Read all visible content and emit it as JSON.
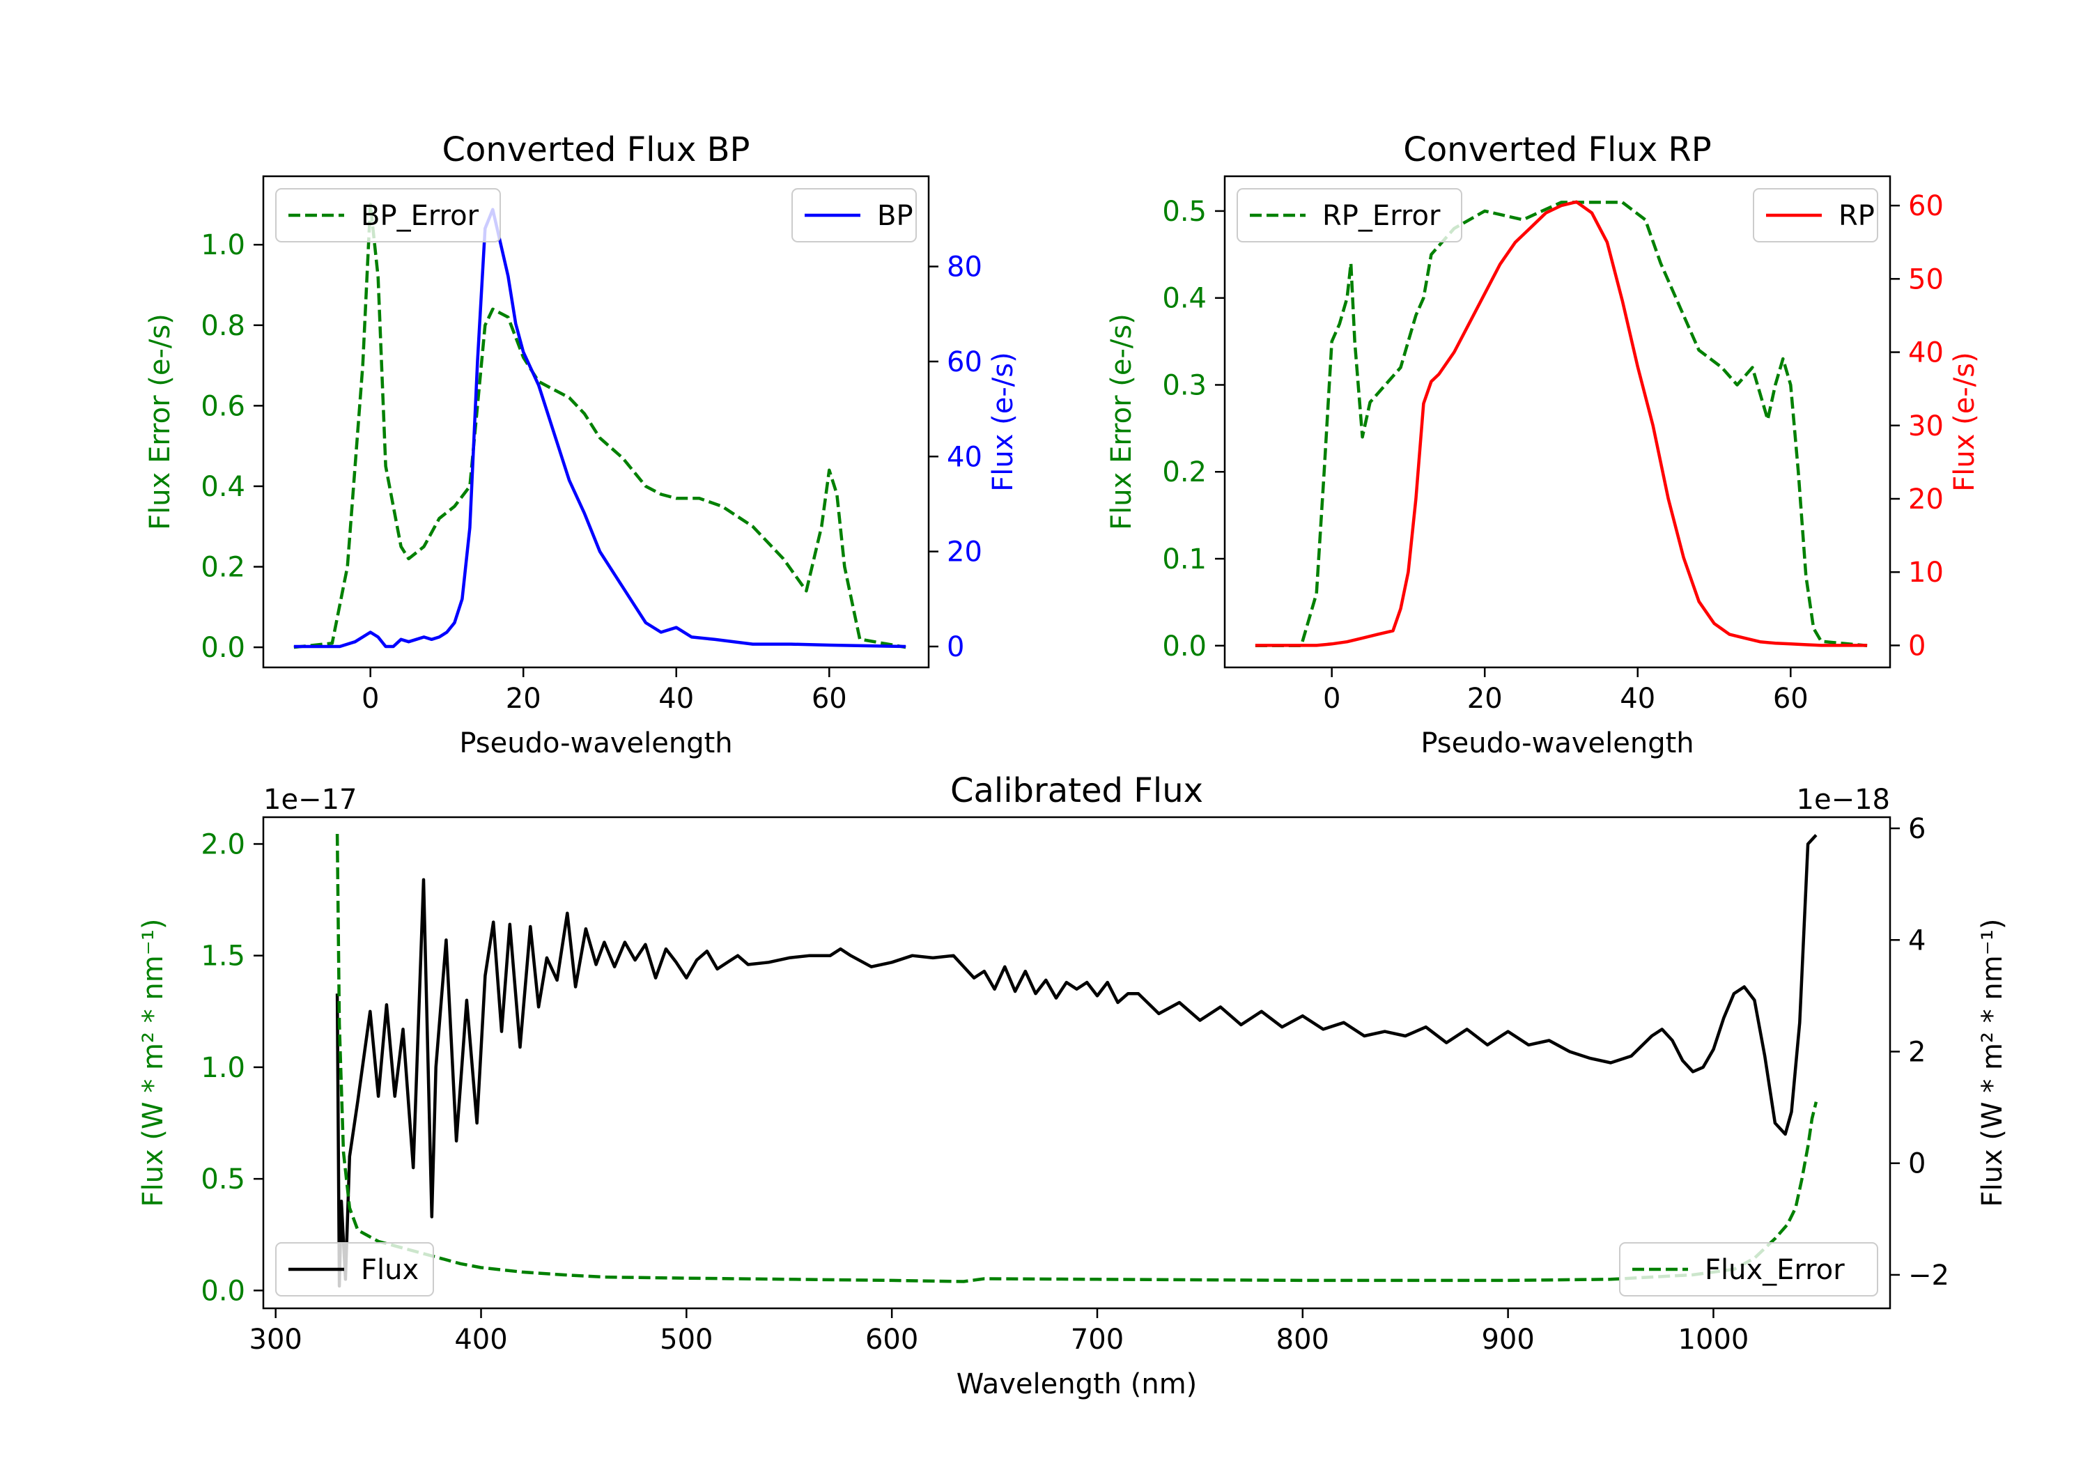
{
  "figure": {
    "background": "#ffffff"
  },
  "chart_data": [
    {
      "id": "bp",
      "type": "line",
      "title": "Converted Flux BP",
      "xlabel": "Pseudo-wavelength",
      "ylabel_left": "Flux Error (e-/s)",
      "ylabel_right": "Flux (e-/s)",
      "xlim": [
        -14,
        73
      ],
      "ylim_left": [
        -0.05,
        1.17
      ],
      "ylim_right": [
        -4.4,
        99
      ],
      "xticks": [
        0,
        20,
        40,
        60
      ],
      "yticks_left": [
        "0.0",
        "0.2",
        "0.4",
        "0.6",
        "0.8",
        "1.0"
      ],
      "yticks_left_values": [
        0,
        0.2,
        0.4,
        0.6,
        0.8,
        1.0
      ],
      "yticks_right": [
        "0",
        "20",
        "40",
        "60",
        "80"
      ],
      "yticks_right_values": [
        0,
        20,
        40,
        60,
        80
      ],
      "left_color": "#008000",
      "right_color": "#0000ff",
      "legend_left": {
        "label": "BP_Error",
        "position": "upper left"
      },
      "legend_right": {
        "label": "BP",
        "position": "upper right"
      },
      "series": [
        {
          "name": "BP_Error",
          "axis": "left",
          "color": "#008000",
          "style": "dashed",
          "x": [
            -10,
            -5,
            -3,
            -1,
            0,
            1,
            2,
            3,
            4,
            5,
            7,
            9,
            11,
            13,
            14,
            15,
            16,
            18,
            20,
            22,
            24,
            26,
            28,
            30,
            33,
            36,
            38,
            40,
            43,
            46,
            50,
            54,
            57,
            59,
            60,
            61,
            62,
            64,
            70
          ],
          "y": [
            0,
            0.01,
            0.2,
            0.7,
            1.1,
            0.92,
            0.45,
            0.35,
            0.25,
            0.22,
            0.25,
            0.32,
            0.35,
            0.4,
            0.6,
            0.8,
            0.84,
            0.82,
            0.72,
            0.66,
            0.64,
            0.62,
            0.58,
            0.52,
            0.47,
            0.4,
            0.38,
            0.37,
            0.37,
            0.35,
            0.3,
            0.22,
            0.14,
            0.3,
            0.44,
            0.38,
            0.2,
            0.02,
            0
          ]
        },
        {
          "name": "BP",
          "axis": "right",
          "color": "#0000ff",
          "style": "solid",
          "x": [
            -10,
            -4,
            -2,
            0,
            1,
            2,
            3,
            4,
            5,
            6,
            7,
            8,
            9,
            10,
            11,
            12,
            13,
            14,
            15,
            16,
            17,
            18,
            19,
            20,
            22,
            24,
            26,
            28,
            30,
            32,
            34,
            36,
            38,
            40,
            42,
            45,
            50,
            55,
            60,
            70
          ],
          "y": [
            0,
            0,
            1,
            3,
            2,
            0,
            0,
            1.5,
            1,
            1.5,
            2,
            1.5,
            2,
            3,
            5,
            10,
            25,
            60,
            88,
            92,
            85,
            78,
            68,
            62,
            55,
            45,
            35,
            28,
            20,
            15,
            10,
            5,
            3,
            4,
            2,
            1.5,
            0.5,
            0.5,
            0.3,
            0
          ]
        }
      ]
    },
    {
      "id": "rp",
      "type": "line",
      "title": "Converted Flux RP",
      "xlabel": "Pseudo-wavelength",
      "ylabel_left": "Flux Error (e-/s)",
      "ylabel_right": "Flux (e-/s)",
      "xlim": [
        -14,
        73
      ],
      "ylim_left": [
        -0.025,
        0.54
      ],
      "ylim_right": [
        -3,
        64
      ],
      "xticks": [
        0,
        20,
        40,
        60
      ],
      "yticks_left": [
        "0.0",
        "0.1",
        "0.2",
        "0.3",
        "0.4",
        "0.5"
      ],
      "yticks_left_values": [
        0,
        0.1,
        0.2,
        0.3,
        0.4,
        0.5
      ],
      "yticks_right": [
        "0",
        "10",
        "20",
        "30",
        "40",
        "50",
        "60"
      ],
      "yticks_right_values": [
        0,
        10,
        20,
        30,
        40,
        50,
        60
      ],
      "left_color": "#008000",
      "right_color": "#ff0000",
      "legend_left": {
        "label": "RP_Error",
        "position": "upper left"
      },
      "legend_right": {
        "label": "RP",
        "position": "upper right"
      },
      "series": [
        {
          "name": "RP_Error",
          "axis": "left",
          "color": "#008000",
          "style": "dashed",
          "x": [
            -10,
            -4,
            -2,
            -1,
            0,
            1,
            2,
            2.5,
            3,
            4,
            5,
            7,
            9,
            10,
            11,
            12,
            13,
            16,
            20,
            25,
            30,
            35,
            38,
            41,
            43,
            46,
            48,
            51,
            53,
            55,
            56,
            57,
            58,
            59,
            60,
            61,
            62,
            63,
            64,
            70
          ],
          "y": [
            0,
            0,
            0.06,
            0.2,
            0.35,
            0.37,
            0.4,
            0.44,
            0.35,
            0.24,
            0.28,
            0.3,
            0.32,
            0.35,
            0.38,
            0.4,
            0.45,
            0.48,
            0.5,
            0.49,
            0.51,
            0.51,
            0.51,
            0.49,
            0.44,
            0.38,
            0.34,
            0.32,
            0.3,
            0.32,
            0.29,
            0.26,
            0.3,
            0.33,
            0.3,
            0.2,
            0.08,
            0.02,
            0.005,
            0
          ]
        },
        {
          "name": "RP",
          "axis": "right",
          "color": "#ff0000",
          "style": "solid",
          "x": [
            -10,
            -2,
            0,
            2,
            4,
            6,
            8,
            9,
            10,
            11,
            12,
            13,
            14,
            16,
            18,
            20,
            22,
            24,
            26,
            28,
            30,
            32,
            34,
            36,
            38,
            40,
            42,
            44,
            46,
            48,
            50,
            52,
            54,
            56,
            58,
            60,
            62,
            64,
            70
          ],
          "y": [
            0,
            0,
            0.2,
            0.5,
            1,
            1.5,
            2,
            5,
            10,
            20,
            33,
            36,
            37,
            40,
            44,
            48,
            52,
            55,
            57,
            59,
            60,
            60.5,
            59,
            55,
            47,
            38,
            30,
            20,
            12,
            6,
            3,
            1.5,
            1,
            0.5,
            0.3,
            0.2,
            0.1,
            0,
            0
          ]
        }
      ]
    },
    {
      "id": "cal",
      "type": "line",
      "title": "Calibrated Flux",
      "xlabel": "Wavelength (nm)",
      "ylabel_left": "Flux (W * m² * nm⁻¹)",
      "ylabel_right": "Flux (W * m² * nm⁻¹)",
      "offset_left": "1e−17",
      "offset_right": "1e−18",
      "xlim": [
        294,
        1086
      ],
      "ylim_left": [
        -0.08,
        2.12
      ],
      "ylim_right": [
        -2.6,
        6.2
      ],
      "xticks": [
        300,
        400,
        500,
        600,
        700,
        800,
        900,
        1000
      ],
      "yticks_left": [
        "0.0",
        "0.5",
        "1.0",
        "1.5",
        "2.0"
      ],
      "yticks_left_values": [
        0,
        0.5,
        1.0,
        1.5,
        2.0
      ],
      "yticks_right": [
        "−2",
        "0",
        "2",
        "4",
        "6"
      ],
      "yticks_right_values": [
        -2,
        0,
        2,
        4,
        6
      ],
      "left_color": "#008000",
      "right_color": "#000000",
      "legend_left": {
        "label": "Flux",
        "position": "lower left"
      },
      "legend_right": {
        "label": "Flux_Error",
        "position": "lower right"
      },
      "series": [
        {
          "name": "Flux",
          "axis": "left",
          "color": "#000000",
          "style": "solid",
          "x": [
            330,
            331,
            332,
            334,
            336,
            340,
            346,
            350,
            354,
            358,
            362,
            367,
            372,
            376,
            378,
            383,
            388,
            393,
            398,
            402,
            406,
            410,
            414,
            419,
            424,
            428,
            432,
            437,
            442,
            446,
            451,
            456,
            460,
            465,
            470,
            475,
            480,
            485,
            490,
            495,
            500,
            505,
            510,
            515,
            520,
            525,
            530,
            540,
            550,
            560,
            570,
            575,
            580,
            590,
            600,
            610,
            620,
            630,
            640,
            645,
            650,
            655,
            660,
            665,
            670,
            675,
            680,
            685,
            690,
            695,
            700,
            705,
            710,
            715,
            720,
            730,
            740,
            750,
            760,
            770,
            780,
            790,
            800,
            810,
            820,
            830,
            840,
            850,
            860,
            870,
            880,
            890,
            900,
            910,
            920,
            930,
            940,
            950,
            960,
            970,
            975,
            980,
            985,
            990,
            995,
            1000,
            1005,
            1010,
            1015,
            1020,
            1025,
            1030,
            1035,
            1038,
            1042,
            1046,
            1050
          ],
          "y": [
            1.33,
            0.02,
            0.4,
            0.05,
            0.6,
            0.85,
            1.25,
            0.87,
            1.28,
            0.87,
            1.17,
            0.55,
            1.84,
            0.33,
            1.0,
            1.57,
            0.67,
            1.3,
            0.75,
            1.41,
            1.65,
            1.16,
            1.64,
            1.09,
            1.63,
            1.27,
            1.49,
            1.39,
            1.69,
            1.36,
            1.62,
            1.46,
            1.56,
            1.45,
            1.56,
            1.48,
            1.55,
            1.4,
            1.53,
            1.47,
            1.4,
            1.48,
            1.52,
            1.44,
            1.47,
            1.5,
            1.46,
            1.47,
            1.49,
            1.5,
            1.5,
            1.53,
            1.5,
            1.45,
            1.47,
            1.5,
            1.49,
            1.5,
            1.4,
            1.43,
            1.35,
            1.45,
            1.34,
            1.43,
            1.33,
            1.39,
            1.31,
            1.38,
            1.35,
            1.38,
            1.32,
            1.38,
            1.29,
            1.33,
            1.33,
            1.24,
            1.29,
            1.21,
            1.27,
            1.19,
            1.25,
            1.18,
            1.23,
            1.17,
            1.2,
            1.14,
            1.16,
            1.14,
            1.18,
            1.11,
            1.17,
            1.1,
            1.16,
            1.1,
            1.12,
            1.07,
            1.04,
            1.02,
            1.05,
            1.14,
            1.17,
            1.12,
            1.03,
            0.98,
            1.0,
            1.08,
            1.22,
            1.33,
            1.36,
            1.3,
            1.05,
            0.75,
            0.7,
            0.8,
            1.2,
            2.0,
            2.04
          ]
        },
        {
          "name": "Flux_Error",
          "axis": "right",
          "color": "#008000",
          "style": "dashed",
          "x": [
            330,
            331,
            333,
            336,
            340,
            345,
            350,
            360,
            370,
            380,
            390,
            400,
            420,
            440,
            460,
            500,
            550,
            600,
            635,
            645,
            700,
            800,
            900,
            950,
            990,
            1010,
            1020,
            1030,
            1036,
            1040,
            1043,
            1046,
            1048,
            1050
          ],
          "y": [
            5.9,
            2.5,
            0.2,
            -0.8,
            -1.2,
            -1.3,
            -1.4,
            -1.5,
            -1.6,
            -1.7,
            -1.8,
            -1.87,
            -1.95,
            -2.0,
            -2.04,
            -2.06,
            -2.08,
            -2.1,
            -2.12,
            -2.07,
            -2.08,
            -2.1,
            -2.1,
            -2.08,
            -2.0,
            -1.9,
            -1.7,
            -1.35,
            -1.1,
            -0.8,
            -0.3,
            0.3,
            0.8,
            1.1
          ]
        }
      ]
    }
  ]
}
